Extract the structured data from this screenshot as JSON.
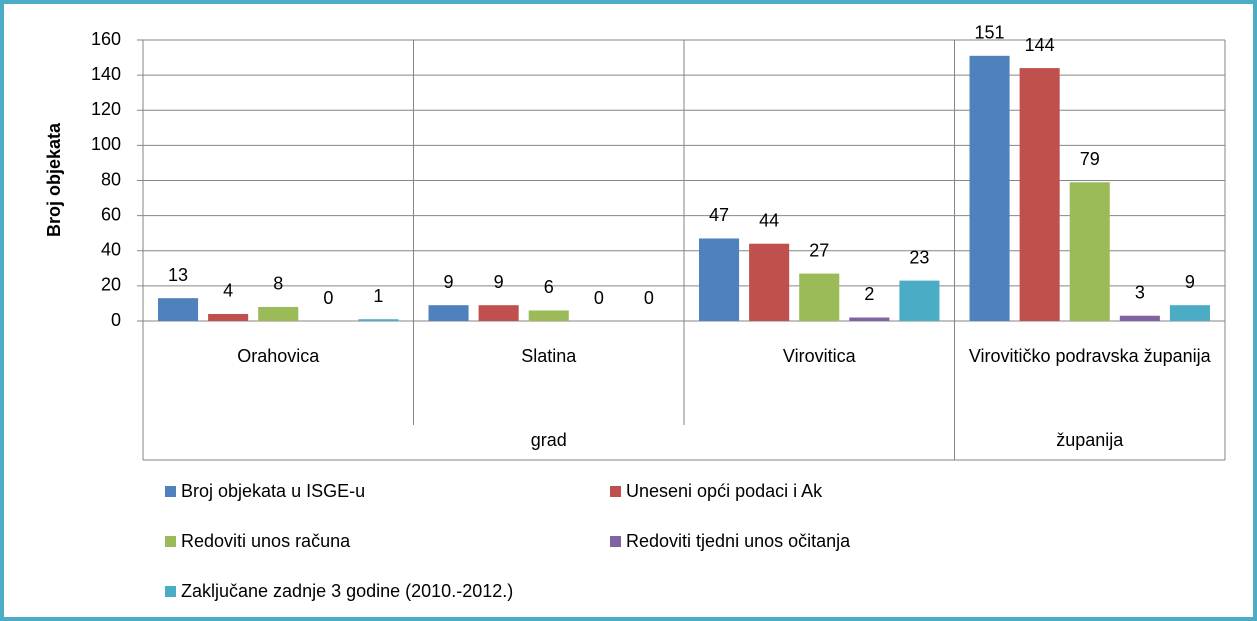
{
  "chart_data": {
    "type": "bar",
    "y_label": "Broj objekata",
    "groups": [
      {
        "label": "grad",
        "categories": [
          "Orahovica",
          "Slatina",
          "Virovitica"
        ]
      },
      {
        "label": "županija",
        "categories": [
          "Virovitičko podravska županija"
        ]
      }
    ],
    "series": [
      {
        "name": "Broj objekata u ISGE-u",
        "color": "#4f81bd",
        "values": [
          13,
          9,
          47,
          151
        ]
      },
      {
        "name": "Uneseni opći podaci i Ak",
        "color": "#c0504d",
        "values": [
          4,
          9,
          44,
          144
        ]
      },
      {
        "name": "Redoviti unos računa",
        "color": "#9bbb59",
        "values": [
          8,
          6,
          27,
          79
        ]
      },
      {
        "name": "Redoviti tjedni unos očitanja",
        "color": "#8064a2",
        "values": [
          0,
          0,
          2,
          3
        ]
      },
      {
        "name": "Zaključane zadnje 3 godine (2010.-2012.)",
        "color": "#4bacc6",
        "values": [
          1,
          0,
          23,
          9
        ]
      }
    ],
    "ylim": [
      0,
      160
    ],
    "yticks": [
      0,
      20,
      40,
      60,
      80,
      100,
      120,
      140,
      160
    ],
    "grid": true,
    "legend": "bottom"
  }
}
